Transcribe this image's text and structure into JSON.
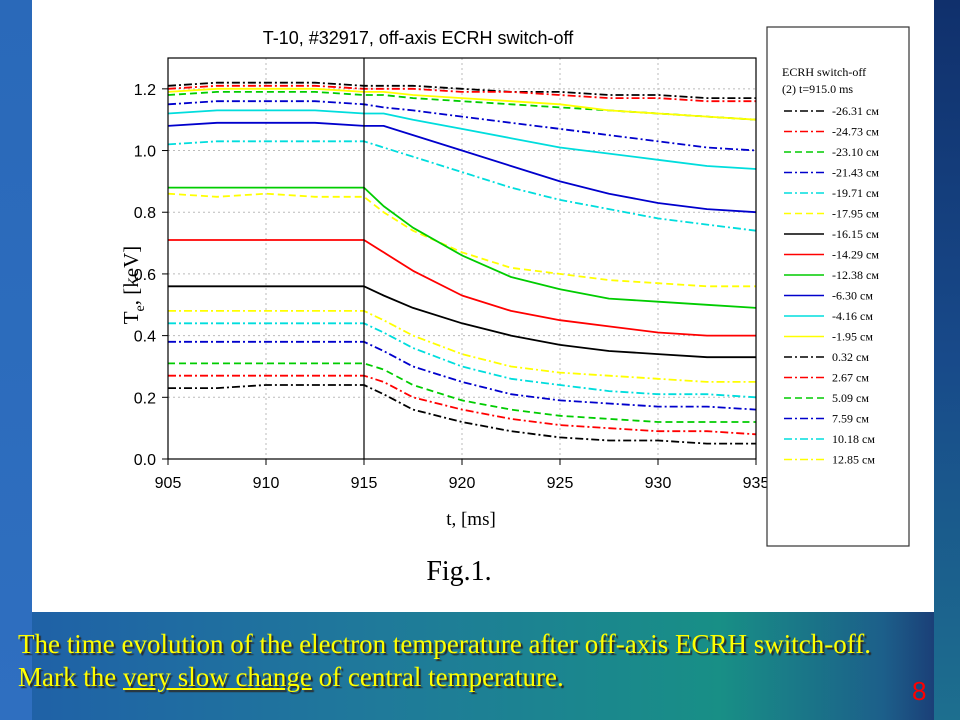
{
  "slide": {
    "caption_part1": "The time evolution of the electron temperature after off-axis ECRH switch-off. Mark the ",
    "caption_underlined": "very slow change",
    "caption_part2": " of central temperature.",
    "slide_number": "8"
  },
  "figure_caption": "Fig.1.",
  "chart_data": {
    "type": "line",
    "title": "T-10, #32917, off-axis ECRH switch-off",
    "xlabel": "t, [ms]",
    "ylabel": "T",
    "ylabel_subscript": "e",
    "ylabel_suffix": ", [keV]",
    "xlim": [
      905,
      935
    ],
    "ylim": [
      0.0,
      1.3
    ],
    "xticks": [
      905,
      910,
      915,
      920,
      925,
      930,
      935
    ],
    "yticks": [
      0.0,
      0.2,
      0.4,
      0.6,
      0.8,
      1.0,
      1.2
    ],
    "xtick_labels": [
      "905",
      "910",
      "915",
      "920",
      "925",
      "930",
      "935"
    ],
    "ytick_labels": [
      "0.0",
      "0.2",
      "0.4",
      "0.6",
      "0.8",
      "1.0",
      "1.2"
    ],
    "grid": true,
    "vline_x": 915.0,
    "x": [
      905,
      907.5,
      910,
      912.5,
      915,
      916,
      917.5,
      920,
      922.5,
      925,
      927.5,
      930,
      932.5,
      935
    ],
    "legend_title_1": "ECRH switch-off",
    "legend_title_2": "(2)  t=915.0 ms",
    "legend_position": "right",
    "series": [
      {
        "name": "-26.31 см",
        "color": "#000000",
        "dash": "dashdot",
        "values": [
          1.21,
          1.22,
          1.22,
          1.22,
          1.21,
          1.21,
          1.21,
          1.2,
          1.19,
          1.19,
          1.18,
          1.18,
          1.17,
          1.17
        ]
      },
      {
        "name": "-24.73 см",
        "color": "#ff0000",
        "dash": "dashdot",
        "values": [
          1.2,
          1.21,
          1.21,
          1.21,
          1.2,
          1.2,
          1.2,
          1.19,
          1.19,
          1.18,
          1.17,
          1.17,
          1.16,
          1.16
        ]
      },
      {
        "name": "-23.10 см",
        "color": "#00cc00",
        "dash": "dash",
        "values": [
          1.18,
          1.19,
          1.19,
          1.19,
          1.18,
          1.18,
          1.17,
          1.16,
          1.15,
          1.14,
          1.13,
          1.12,
          1.11,
          1.1
        ]
      },
      {
        "name": "-21.43 см",
        "color": "#0000cc",
        "dash": "dashdot",
        "values": [
          1.15,
          1.16,
          1.16,
          1.16,
          1.15,
          1.14,
          1.13,
          1.11,
          1.09,
          1.07,
          1.05,
          1.03,
          1.01,
          1.0
        ]
      },
      {
        "name": "-19.71 см",
        "color": "#00dddd",
        "dash": "dashdot",
        "values": [
          1.02,
          1.03,
          1.03,
          1.03,
          1.03,
          1.01,
          0.98,
          0.93,
          0.88,
          0.84,
          0.81,
          0.78,
          0.76,
          0.74
        ]
      },
      {
        "name": "-17.95 см",
        "color": "#ffff00",
        "dash": "dash",
        "values": [
          0.86,
          0.85,
          0.86,
          0.85,
          0.85,
          0.8,
          0.74,
          0.67,
          0.62,
          0.6,
          0.58,
          0.57,
          0.56,
          0.56
        ]
      },
      {
        "name": "-16.15 см",
        "color": "#000000",
        "dash": "solid",
        "values": [
          0.56,
          0.56,
          0.56,
          0.56,
          0.56,
          0.53,
          0.49,
          0.44,
          0.4,
          0.37,
          0.35,
          0.34,
          0.33,
          0.33
        ]
      },
      {
        "name": "-14.29 см",
        "color": "#ff0000",
        "dash": "solid",
        "values": [
          0.71,
          0.71,
          0.71,
          0.71,
          0.71,
          0.67,
          0.61,
          0.53,
          0.48,
          0.45,
          0.43,
          0.41,
          0.4,
          0.4
        ]
      },
      {
        "name": "-12.38 см",
        "color": "#00cc00",
        "dash": "solid",
        "values": [
          0.88,
          0.88,
          0.88,
          0.88,
          0.88,
          0.82,
          0.75,
          0.66,
          0.59,
          0.55,
          0.52,
          0.51,
          0.5,
          0.49
        ]
      },
      {
        "name": "-6.30 см",
        "color": "#0000cc",
        "dash": "solid",
        "values": [
          1.08,
          1.09,
          1.09,
          1.09,
          1.08,
          1.08,
          1.05,
          1.0,
          0.95,
          0.9,
          0.86,
          0.83,
          0.81,
          0.8
        ]
      },
      {
        "name": "-4.16 см",
        "color": "#00dddd",
        "dash": "solid",
        "values": [
          1.12,
          1.13,
          1.13,
          1.13,
          1.12,
          1.12,
          1.1,
          1.07,
          1.04,
          1.01,
          0.99,
          0.97,
          0.95,
          0.94
        ]
      },
      {
        "name": "-1.95 см",
        "color": "#ffff00",
        "dash": "solid",
        "values": [
          1.19,
          1.2,
          1.2,
          1.2,
          1.19,
          1.19,
          1.18,
          1.17,
          1.16,
          1.15,
          1.13,
          1.12,
          1.11,
          1.1
        ]
      },
      {
        "name": "0.32 см",
        "color": "#000000",
        "dash": "dashdot",
        "values": [
          0.23,
          0.23,
          0.24,
          0.24,
          0.24,
          0.21,
          0.16,
          0.12,
          0.09,
          0.07,
          0.06,
          0.06,
          0.05,
          0.05
        ]
      },
      {
        "name": "2.67 см",
        "color": "#ff0000",
        "dash": "dashdot",
        "values": [
          0.27,
          0.27,
          0.27,
          0.27,
          0.27,
          0.25,
          0.2,
          0.16,
          0.13,
          0.11,
          0.1,
          0.09,
          0.09,
          0.08
        ]
      },
      {
        "name": "5.09 см",
        "color": "#00cc00",
        "dash": "dash",
        "values": [
          0.31,
          0.31,
          0.31,
          0.31,
          0.31,
          0.29,
          0.24,
          0.19,
          0.16,
          0.14,
          0.13,
          0.12,
          0.12,
          0.12
        ]
      },
      {
        "name": "7.59 см",
        "color": "#0000cc",
        "dash": "dashdot",
        "values": [
          0.38,
          0.38,
          0.38,
          0.38,
          0.38,
          0.35,
          0.3,
          0.25,
          0.21,
          0.19,
          0.18,
          0.17,
          0.17,
          0.16
        ]
      },
      {
        "name": "10.18 см",
        "color": "#00dddd",
        "dash": "dashdot",
        "values": [
          0.44,
          0.44,
          0.44,
          0.44,
          0.44,
          0.41,
          0.36,
          0.3,
          0.26,
          0.24,
          0.22,
          0.21,
          0.21,
          0.2
        ]
      },
      {
        "name": "12.85 см",
        "color": "#ffff00",
        "dash": "dashdot",
        "values": [
          0.48,
          0.48,
          0.48,
          0.48,
          0.48,
          0.45,
          0.4,
          0.34,
          0.3,
          0.28,
          0.27,
          0.26,
          0.25,
          0.25
        ]
      }
    ]
  }
}
